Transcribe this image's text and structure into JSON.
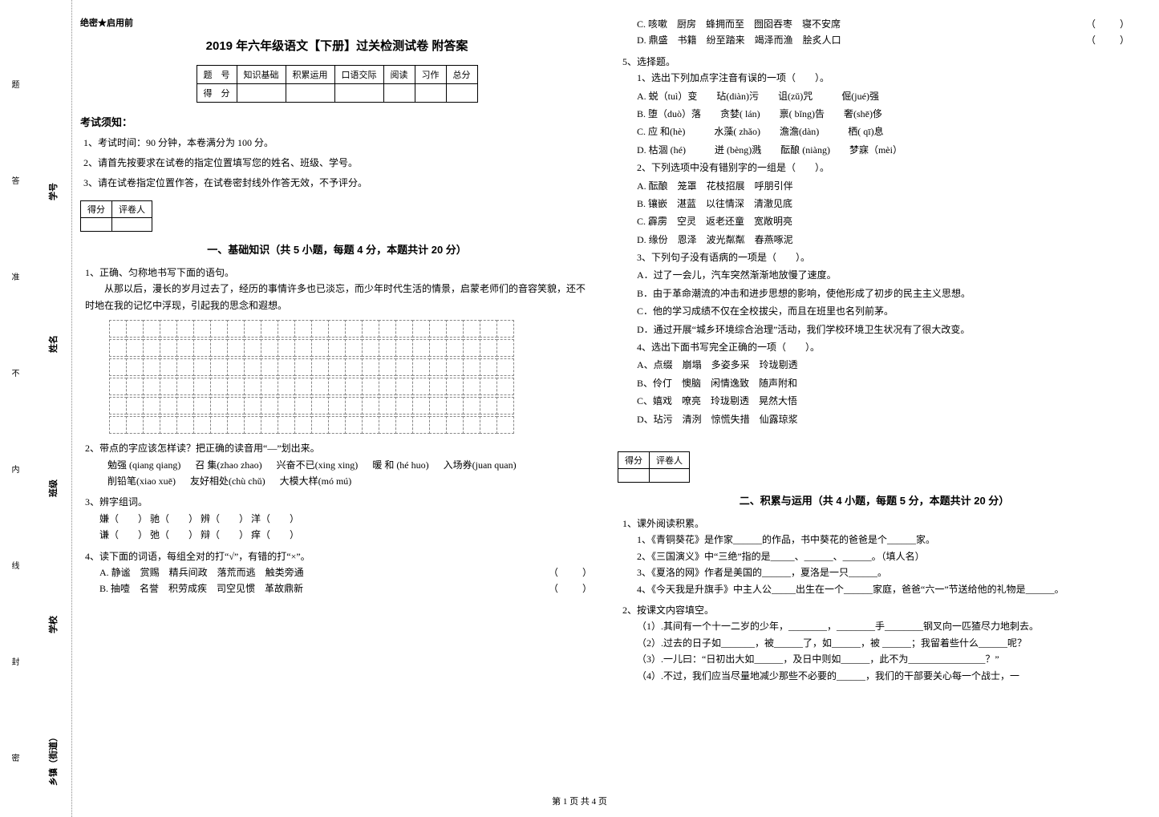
{
  "binding": {
    "labels": [
      "乡镇（街道）",
      "学校",
      "班级",
      "姓名",
      "学号"
    ],
    "dotted_labels": [
      "密",
      "封",
      "线",
      "内",
      "不",
      "准",
      "答",
      "题"
    ]
  },
  "header": {
    "secret": "绝密★启用前",
    "title": "2019 年六年级语文【下册】过关检测试卷 附答案"
  },
  "score_table": {
    "row1": [
      "题　号",
      "知识基础",
      "积累运用",
      "口语交际",
      "阅读",
      "习作",
      "总分"
    ],
    "row2_label": "得　分"
  },
  "notice": {
    "heading": "考试须知：",
    "items": [
      "1、考试时间：90 分钟，本卷满分为 100 分。",
      "2、请首先按要求在试卷的指定位置填写您的姓名、班级、学号。",
      "3、请在试卷指定位置作答，在试卷密封线外作答无效，不予评分。"
    ]
  },
  "scorebox": {
    "c1": "得分",
    "c2": "评卷人"
  },
  "part1": {
    "title": "一、基础知识（共 5 小题，每题 4 分，本题共计 20 分）",
    "q1": {
      "stem": "1、正确、匀称地书写下面的语句。",
      "para": "从那以后，漫长的岁月过去了，经历的事情许多也已淡忘，而少年时代生活的情景，启蒙老师们的音容笑貌，还不时地在我的记忆中浮现，引起我的思念和遐想。",
      "grid_rows": 6,
      "grid_cols": 24
    },
    "q2": {
      "stem": "2、带点的字应该怎样读？把正确的读音用“—”划出来。",
      "items": [
        "勉强 (qiang qiang)",
        "召 集(zhao zhao)",
        "兴奋不已(xing xing)",
        "暖 和 (hé huo)",
        "入场券(juan quan)",
        "削铅笔(xiao xuē)",
        "友好相处(chù chǔ)",
        "大模大样(mó mú)"
      ]
    },
    "q3": {
      "stem": "3、辨字组词。",
      "rows": [
        [
          "嫌（　　）",
          "驰（　　）",
          "辨（　　）",
          "洋（　　）"
        ],
        [
          "谦（　　）",
          "弛（　　）",
          "辩（　　）",
          "痒（　　）"
        ]
      ]
    },
    "q4": {
      "stem": "4、读下面的词语，每组全对的打“√”，有错的打“×”。",
      "rows": [
        {
          "label": "A.",
          "words": "静谧　赏赐　精兵间政　落荒而逃　触类旁通",
          "paren": "（　　）"
        },
        {
          "label": "B.",
          "words": "抽噎　名誉　积劳成疾　司空见惯　革故鼎新",
          "paren": "（　　）"
        },
        {
          "label": "C.",
          "words": "咳嗽　厨房　蜂拥而至　囫囵吞枣　寝不安席",
          "paren": "（　　）"
        },
        {
          "label": "D.",
          "words": "鼎盛　书籍　纷至踏来　竭泽而渔　脍炙人口",
          "paren": "（　　）"
        }
      ]
    },
    "q5": {
      "stem": "5、选择题。",
      "sub1": {
        "stem": "1、选出下列加点字注音有误的一项（　　）。",
        "opts": [
          "A. 蜕（tuì）变　　玷(diàn)污　　诅(zǔ)咒　　　倔(jué)强",
          "B. 堕（duò）落　　贪婪( lán)　　禀( bǐng)告　　奢(shē)侈",
          "C. 应 和(hè)　　　水藻( zhǎo)　　澹澹(dàn)　　　栖( qī)息",
          "D. 枯涸 (hé)　　　迸 (bèng)溅　　酝酿 (niàng)　　梦寐（mèi）"
        ]
      },
      "sub2": {
        "stem": "2、下列选项中没有错别字的一组是（　　）。",
        "opts": [
          "A. 酝酿　笼罩　花枝招展　呼朋引伴",
          "B. 镶嵌　湛蓝　以往情深　清澈见底",
          "C. 霹雳　空灵　返老还童　宽敞明亮",
          "D. 缘份　恩泽　波光粼粼　春燕啄泥"
        ]
      },
      "sub3": {
        "stem": "3、下列句子没有语病的一项是（　　）。",
        "opts": [
          "A．过了一会儿，汽车突然渐渐地放慢了速度。",
          "B．由于革命潮流的冲击和进步思想的影响，使他形成了初步的民主主义思想。",
          "C．他的学习成绩不仅在全校拔尖，而且在班里也名列前茅。",
          "D．通过开展“城乡环境综合治理”活动，我们学校环境卫生状况有了很大改变。"
        ]
      },
      "sub4": {
        "stem": "4、选出下面书写完全正确的一项（　　）。",
        "opts": [
          "A、点缀　崩塌　多姿多采　玲珑剔透",
          "B、伶仃　懊脑　闲情逸致　随声附和",
          "C、嬉戏　嘹亮　玲珑剔透　晃然大悟",
          "D、玷污　清洌　惊慌失措　仙露琼浆"
        ]
      }
    }
  },
  "part2": {
    "title": "二、积累与运用（共 4 小题，每题 5 分，本题共计 20 分）",
    "q1": {
      "stem": "1、课外阅读积累。",
      "lines": [
        "1、《青铜葵花》是作家______的作品，书中葵花的爸爸是个______家。",
        "2、《三国演义》中“三绝”指的是_____、______、______。（填人名）",
        "3、《夏洛的网》作者是美国的______，夏洛是一只______。",
        "4、《今天我是升旗手》中主人公_____出生在一个______家庭，爸爸“六一”节送给他的礼物是______。"
      ]
    },
    "q2": {
      "stem": "2、按课文内容填空。",
      "lines": [
        "（1）.其间有一个十一二岁的少年，________，________手________钢叉向一匹猹尽力地刺去。",
        "（2）.过去的日子如_______，被______了，如______，被 ______；我留着些什么______呢？",
        "（3）.一儿曰：“日初出大如______，及日中则如______，此不为________________？”",
        "（4）.不过，我们应当尽量地减少那些不必要的______，我们的干部要关心每一个战士，一"
      ]
    }
  },
  "footer": "第 1 页 共 4 页"
}
